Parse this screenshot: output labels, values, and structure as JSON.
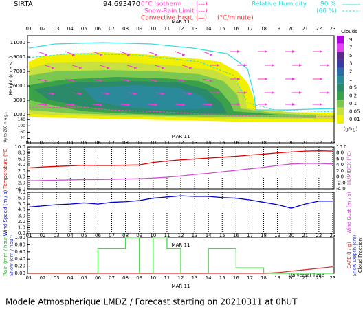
{
  "chart_data": [
    {
      "type": "contour",
      "site": "SIRTA",
      "coords": "94.693470",
      "legend": [
        "0°C Isotherm",
        "(---)",
        "Snow-Rain Limit",
        "(---)",
        "Convective Heat.",
        "(—)",
        "(°C/minute)"
      ],
      "rh_legend": [
        "Relative Humidity",
        "90 %",
        "(60 %)"
      ],
      "date": "MAR 11",
      "categories": [
        "01",
        "02",
        "03",
        "04",
        "05",
        "06",
        "07",
        "08",
        "09",
        "10",
        "11",
        "12",
        "13",
        "14",
        "15",
        "16",
        "17",
        "18",
        "19",
        "20",
        "21",
        "22",
        "23"
      ],
      "ylabel": "Height (m a.s.l.)",
      "ylabel2": "Up to 200 m a.g.l.",
      "ylim": [
        1000,
        11000
      ],
      "yticks": [
        1000,
        3000,
        5000,
        7000,
        9000,
        11000
      ],
      "yticks_low": [
        140,
        100,
        60,
        20
      ],
      "colorbar_title": "Clouds",
      "colorbar_unit": "(g/kg)",
      "levels": [
        9,
        7,
        5,
        3,
        2,
        1,
        0.5,
        0.2,
        0.1,
        0.05,
        0.01
      ],
      "level_colors": [
        "#b000e0",
        "#e040f0",
        "#5a2a8a",
        "#3a3aa0",
        "#2a6aa8",
        "#2a8a9a",
        "#2a8a6a",
        "#3aa04a",
        "#7ac850",
        "#c8e040",
        "#f0f000"
      ],
      "footer": "Modele Atmospherique LMDZ / Forecast starting on 20210311 at 0hUT",
      "xlabel": "Universal Time"
    },
    {
      "type": "line",
      "ylabel": "Temperature (°C)",
      "y2label": "HUMIDEX (°C)",
      "ylim": [
        -4,
        10
      ],
      "yticks": [
        {
          "value": -4,
          "label": "-4.0"
        },
        {
          "value": -2,
          "label": "-2.0"
        },
        {
          "value": 0,
          "label": "0.0"
        },
        {
          "value": 2,
          "label": "2.0"
        },
        {
          "value": 4,
          "label": "4.0"
        },
        {
          "value": 6,
          "label": "6.0"
        },
        {
          "value": 8,
          "label": "8.0"
        },
        {
          "value": 10,
          "label": "10.0"
        }
      ],
      "series": [
        {
          "name": "Temperature",
          "color": "#e00000",
          "values": [
            3.0,
            3.3,
            3.5,
            3.7,
            3.9,
            3.8,
            3.8,
            3.9,
            4.0,
            4.8,
            5.3,
            5.7,
            6.0,
            6.3,
            6.6,
            6.9,
            7.3,
            7.6,
            8.0,
            8.3,
            8.6,
            8.7,
            8.6
          ]
        },
        {
          "name": "HUMIDEX",
          "color": "#d050d0",
          "values": [
            -1.3,
            -1.2,
            -1.1,
            -1.0,
            -0.9,
            -0.9,
            -0.8,
            -0.7,
            -0.6,
            -0.4,
            -0.1,
            0.3,
            0.8,
            1.2,
            1.7,
            2.2,
            2.7,
            3.2,
            3.8,
            4.3,
            4.5,
            4.5,
            4.3
          ]
        }
      ]
    },
    {
      "type": "line",
      "ylabel": "Wind Speed (m / s)",
      "y2label": "Wind Gust (m / s)",
      "ylim": [
        0,
        7
      ],
      "yticks": [
        {
          "value": 0,
          "label": "0.0"
        },
        {
          "value": 1,
          "label": "1.0"
        },
        {
          "value": 2,
          "label": "2.0"
        },
        {
          "value": 3,
          "label": "3.0"
        },
        {
          "value": 4,
          "label": "4.0"
        },
        {
          "value": 5,
          "label": "5.0"
        },
        {
          "value": 6,
          "label": "6.0"
        },
        {
          "value": 7,
          "label": "7.0"
        }
      ],
      "series": [
        {
          "name": "Wind Speed",
          "color": "#0000cc",
          "values": [
            4.5,
            4.7,
            4.9,
            5.0,
            5.2,
            5.0,
            5.3,
            5.4,
            5.6,
            6.0,
            6.2,
            6.4,
            6.3,
            6.3,
            6.1,
            6.0,
            5.7,
            5.3,
            4.9,
            4.3,
            5.0,
            5.5,
            5.5
          ]
        }
      ]
    },
    {
      "type": "step",
      "ylabel": "Rain (mm / hour)",
      "ylabel_b": "Snow (cm / hour)",
      "y2label": "CAPE (J / g)",
      "y2label_b": "Snow Depth (cm)",
      "y2label_c": "Cloud Fraction",
      "ylim": [
        0,
        1
      ],
      "yticks": [
        {
          "value": 0,
          "label": "0.00"
        },
        {
          "value": 0.2,
          "label": "0.20"
        },
        {
          "value": 0.4,
          "label": "0.40"
        },
        {
          "value": 0.6,
          "label": "0.60"
        },
        {
          "value": 0.8,
          "label": "0.80"
        },
        {
          "value": 1,
          "label": "1.00"
        }
      ],
      "series": [
        {
          "name": "Rain",
          "color": "#44dd44",
          "values": [
            0,
            0,
            0,
            0,
            0,
            0.7,
            0.7,
            1.0,
            0,
            1.0,
            0.7,
            0,
            0,
            0.7,
            0.7,
            0.15,
            0.15,
            0,
            0,
            0,
            0,
            0,
            0
          ]
        },
        {
          "name": "CAPE",
          "color": "#e03030",
          "values": [
            0,
            0,
            0,
            0,
            0,
            0,
            0,
            0,
            0,
            0,
            0,
            0,
            0,
            0,
            0,
            0,
            0,
            0,
            0.02,
            0.06,
            0.1,
            0.14,
            0.18
          ]
        }
      ]
    }
  ]
}
